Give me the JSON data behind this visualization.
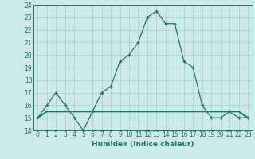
{
  "x": [
    0,
    1,
    2,
    3,
    4,
    5,
    6,
    7,
    8,
    9,
    10,
    11,
    12,
    13,
    14,
    15,
    16,
    17,
    18,
    19,
    20,
    21,
    22,
    23
  ],
  "y_curve": [
    15,
    16,
    17,
    16,
    15,
    14,
    15.5,
    17,
    17.5,
    19.5,
    20,
    21,
    23,
    23.5,
    22.5,
    22.5,
    19.5,
    19,
    16,
    15,
    15,
    15.5,
    15,
    15
  ],
  "y_flat": [
    15,
    15.5,
    15.5,
    15.5,
    15.5,
    15.5,
    15.5,
    15.5,
    15.5,
    15.5,
    15.5,
    15.5,
    15.5,
    15.5,
    15.5,
    15.5,
    15.5,
    15.5,
    15.5,
    15.5,
    15.5,
    15.5,
    15.5,
    15
  ],
  "ylim": [
    14,
    24
  ],
  "xlim": [
    -0.5,
    23.5
  ],
  "yticks": [
    14,
    15,
    16,
    17,
    18,
    19,
    20,
    21,
    22,
    23,
    24
  ],
  "xticks": [
    0,
    1,
    2,
    3,
    4,
    5,
    6,
    7,
    8,
    9,
    10,
    11,
    12,
    13,
    14,
    15,
    16,
    17,
    18,
    19,
    20,
    21,
    22,
    23
  ],
  "xlabel": "Humidex (Indice chaleur)",
  "line_color": "#1a7a6e",
  "bg_color": "#ceeae8",
  "grid_color": "#aacfcc",
  "tick_fontsize": 5.5,
  "label_fontsize": 6.5
}
